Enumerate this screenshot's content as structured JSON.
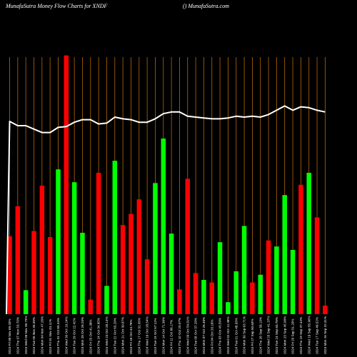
{
  "header": {
    "left_title": "MunafaSutra  Money Flow  Charts for XNDF",
    "right_title": "() MunafaSutra.com"
  },
  "colors": {
    "background": "#000000",
    "gridline": "#b8660b",
    "up": "#00ff00",
    "down": "#ff0000",
    "line": "#ffffff",
    "text": "#ffffff"
  },
  "chart_data": {
    "type": "bar",
    "title": "MunafaSutra  Money Flow  Charts for XNDF",
    "grid": true,
    "ylim": [
      0,
      300
    ],
    "bars": [
      {
        "label": "2024 Fri 08 Nov 69.43%",
        "value": 91,
        "dir": "down"
      },
      {
        "label": "2024 Thu 07 Nov 53.70%",
        "value": 126,
        "dir": "down"
      },
      {
        "label": "2024 Wed 06 Nov 39.73%",
        "value": 28,
        "dir": "up"
      },
      {
        "label": "2024 Tue 05 Nov 30.39%",
        "value": 97,
        "dir": "down"
      },
      {
        "label": "2024 Mon 04 Nov 47.26%",
        "value": 150,
        "dir": "down"
      },
      {
        "label": "2024 Fri 01 Nov 43.11%",
        "value": 90,
        "dir": "down"
      },
      {
        "label": "2024 Thu 31 Oct 60.34%",
        "value": 169,
        "dir": "up"
      },
      {
        "label": "2024 Wed 30 Oct 19.24%",
        "value": 302,
        "dir": "down"
      },
      {
        "label": "2024 Tue 29 Oct 22.42%",
        "value": 154,
        "dir": "up"
      },
      {
        "label": "2024 Mon 28 Oct 26.20%",
        "value": 95,
        "dir": "up"
      },
      {
        "label": "2024 Fri 25 Oct 41.38%",
        "value": 17,
        "dir": "down"
      },
      {
        "label": "2024 Thu 24 Oct 34.85%",
        "value": 165,
        "dir": "down"
      },
      {
        "label": "2024 Wed 23 Oct 28.14%",
        "value": 33,
        "dir": "up"
      },
      {
        "label": "2024 Tue 22 Oct 63.29%",
        "value": 179,
        "dir": "up"
      },
      {
        "label": "2024 Mon 21 Oct 39.87%",
        "value": 104,
        "dir": "down"
      },
      {
        "label": "2024 Fri 18 Oct 44.76%",
        "value": 117,
        "dir": "down"
      },
      {
        "label": "2024 Thu 17 Oct 32.05%",
        "value": 134,
        "dir": "down"
      },
      {
        "label": "2024 Wed 16 Oct 28.54%",
        "value": 64,
        "dir": "down"
      },
      {
        "label": "2024 Tue 15 Oct 57.11%",
        "value": 153,
        "dir": "up"
      },
      {
        "label": "2024 Mon 14 Oct 71.36%",
        "value": 205,
        "dir": "up"
      },
      {
        "label": "2024 Fri 11 Oct 66.17%",
        "value": 94,
        "dir": "up"
      },
      {
        "label": "2024 Thu 10 Oct 20.07%",
        "value": 29,
        "dir": "down"
      },
      {
        "label": "2024 Wed 09 Oct 54.81%",
        "value": 158,
        "dir": "down"
      },
      {
        "label": "2024 Tue 08 Oct 37.29%",
        "value": 48,
        "dir": "down"
      },
      {
        "label": "2024 Mon 07 Oct 26.48%",
        "value": 40,
        "dir": "up"
      },
      {
        "label": "2024 Fri 04 Oct 20.16%",
        "value": 37,
        "dir": "down"
      },
      {
        "label": "2024 Thu 03 Oct 43.59%",
        "value": 84,
        "dir": "up"
      },
      {
        "label": "2024 Wed 02 Oct 12.48%",
        "value": 14,
        "dir": "up"
      },
      {
        "label": "2024 Tue 01 Oct 48.93%",
        "value": 50,
        "dir": "up"
      },
      {
        "label": "2024 Mon 30 Sep 63.71%",
        "value": 103,
        "dir": "up"
      },
      {
        "label": "2024 Fri 27 Sep 50.64%",
        "value": 37,
        "dir": "down"
      },
      {
        "label": "2024 Thu 26 Sep 58.13%",
        "value": 46,
        "dir": "up"
      },
      {
        "label": "2024 Wed 25 Sep 41.37%",
        "value": 86,
        "dir": "down"
      },
      {
        "label": "2024 Tue 24 Sep 60.76%",
        "value": 79,
        "dir": "up"
      },
      {
        "label": "2024 Mon 23 Sep 45.08%",
        "value": 139,
        "dir": "up"
      },
      {
        "label": "2024 Fri 20 Sep 51.29%",
        "value": 75,
        "dir": "up"
      },
      {
        "label": "2024 Thu 19 Sep 37.44%",
        "value": 151,
        "dir": "down"
      },
      {
        "label": "2024 Wed 18 Sep 55.90%",
        "value": 165,
        "dir": "up"
      },
      {
        "label": "2024 Tue 17 Sep 46.52%",
        "value": 113,
        "dir": "down"
      },
      {
        "label": "2024 Mon 16 Sep 42.31%",
        "value": 10,
        "dir": "down"
      }
    ],
    "line": [
      225,
      220,
      220,
      216,
      212,
      212,
      218,
      219,
      224,
      227,
      227,
      222,
      223,
      230,
      228,
      227,
      224,
      224,
      228,
      234,
      236,
      236,
      231,
      230,
      229,
      228,
      228,
      229,
      231,
      230,
      231,
      230,
      233,
      238,
      243,
      238,
      242,
      241,
      238,
      236
    ]
  }
}
